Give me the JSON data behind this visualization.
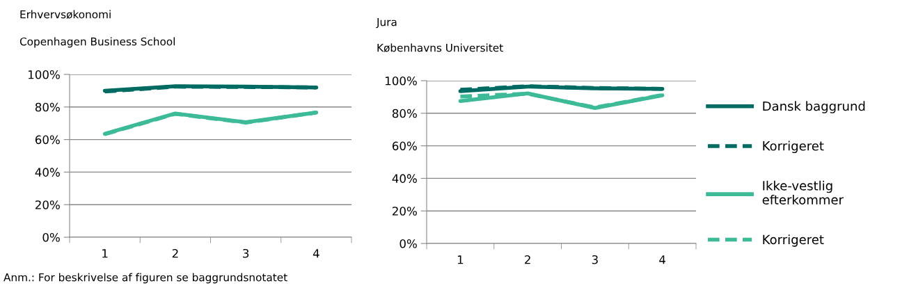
{
  "chart_data": [
    {
      "type": "line",
      "title": "Erhvervsøkonomi",
      "subtitle": "Copenhagen Business School",
      "categories": [
        "1",
        "2",
        "3",
        "4"
      ],
      "series": [
        {
          "name": "Dansk baggrund",
          "color": "#006b63",
          "line_style": "solid",
          "values": [
            90,
            92.7,
            92.5,
            92
          ]
        },
        {
          "name": "Korrigeret",
          "color": "#006b63",
          "line_style": "dashed",
          "values": [
            89.5,
            92.5,
            92.3,
            92
          ]
        },
        {
          "name": "Ikke-vestlig efterkommer",
          "color": "#3dbb99",
          "line_style": "solid",
          "values": [
            63.5,
            76,
            70.6,
            76.6
          ]
        },
        {
          "name": "Korrigeret",
          "color": "#3dbb99",
          "line_style": "dashed",
          "values": [
            63.3,
            75.8,
            70.4,
            76.6
          ]
        }
      ],
      "ylim": [
        0,
        100
      ],
      "yticks": [
        {
          "value": 0,
          "label": "0%"
        },
        {
          "value": 20,
          "label": "20%"
        },
        {
          "value": 40,
          "label": "40%"
        },
        {
          "value": 60,
          "label": "60%"
        },
        {
          "value": 80,
          "label": "80%"
        },
        {
          "value": 100,
          "label": "100%"
        }
      ],
      "grid": "y",
      "legend": "right",
      "annotations": [
        "Anm.: For beskrivelse af figuren se baggrundsnotatet"
      ]
    },
    {
      "type": "line",
      "title": "Jura",
      "subtitle": "Københavns Universitet",
      "categories": [
        "1",
        "2",
        "3",
        "4"
      ],
      "series": [
        {
          "color": "#006b63",
          "line_style": "solid",
          "values": [
            93.6,
            96.4,
            95.3,
            95
          ]
        },
        {
          "color": "#006b63",
          "line_style": "dashed",
          "values": [
            94.4,
            96.6,
            95.5,
            95
          ]
        },
        {
          "color": "#3dbb99",
          "line_style": "solid",
          "values": [
            87.5,
            92.2,
            83.2,
            91
          ]
        },
        {
          "color": "#3dbb99",
          "line_style": "dashed",
          "values": [
            90.3,
            92,
            83.5,
            91.2
          ]
        }
      ],
      "ylim": [
        0,
        100
      ],
      "yticks": [
        {
          "value": 0,
          "label": "0%"
        },
        {
          "value": 20,
          "label": "20%"
        },
        {
          "value": 40,
          "label": "40%"
        },
        {
          "value": 60,
          "label": "60%"
        },
        {
          "value": 80,
          "label": "80%"
        },
        {
          "value": 100,
          "label": "100%"
        }
      ],
      "grid": "y"
    }
  ]
}
